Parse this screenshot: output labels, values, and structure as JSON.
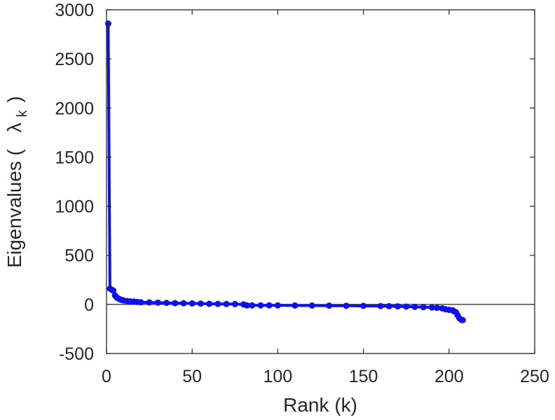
{
  "chart_data": {
    "type": "scatter",
    "title": "",
    "xlabel": "Rank (k)",
    "ylabel": {
      "prefix": "Eigenvalues (",
      "symbol": "λ",
      "subscript": "k",
      "suffix": ")"
    },
    "xlim": [
      0,
      250
    ],
    "ylim": [
      -500,
      3000
    ],
    "xticks": [
      0,
      50,
      100,
      150,
      200,
      250
    ],
    "yticks": [
      -500,
      0,
      500,
      1000,
      1500,
      2000,
      2500,
      3000
    ],
    "grid": false,
    "zero_line": true,
    "series": [
      {
        "color": "#1010e8",
        "marker": "filled-circle",
        "x": [
          1,
          2,
          3,
          4,
          5,
          6,
          7,
          8,
          9,
          10,
          12,
          14,
          16,
          18,
          20,
          25,
          30,
          35,
          40,
          45,
          50,
          55,
          60,
          65,
          70,
          75,
          80,
          82,
          85,
          90,
          95,
          100,
          110,
          120,
          130,
          140,
          150,
          160,
          165,
          170,
          175,
          180,
          185,
          190,
          193,
          196,
          198,
          200,
          202,
          203,
          204,
          205,
          206,
          207,
          208
        ],
        "y": [
          2860,
          160,
          150,
          140,
          90,
          70,
          60,
          50,
          45,
          40,
          35,
          30,
          28,
          25,
          22,
          20,
          18,
          15,
          13,
          12,
          10,
          8,
          6,
          5,
          4,
          3,
          0,
          -10,
          -10,
          -10,
          -10,
          -10,
          -11,
          -12,
          -13,
          -14,
          -15,
          -17,
          -18,
          -20,
          -22,
          -25,
          -28,
          -32,
          -35,
          -40,
          -50,
          -55,
          -60,
          -70,
          -80,
          -110,
          -140,
          -155,
          -160
        ]
      }
    ]
  }
}
